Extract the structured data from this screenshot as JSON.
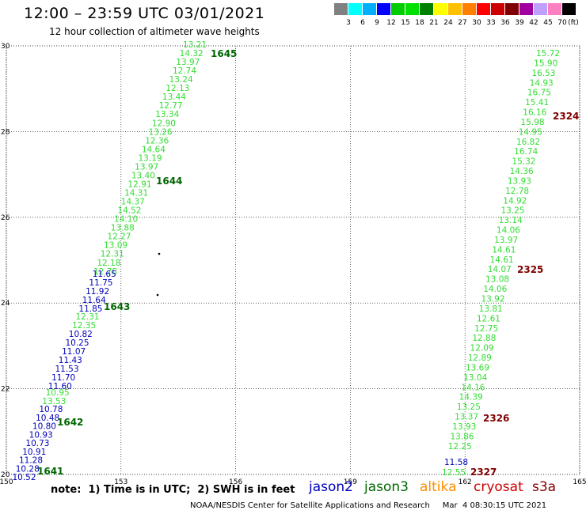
{
  "header": {
    "title": "12:00 – 23:59 UTC 03/01/2021",
    "subtitle": "12 hour collection of altimeter wave heights"
  },
  "color_scale": {
    "unit": "(ft)",
    "swatches": [
      "#808080",
      "#00ffff",
      "#00b0ff",
      "#0000ff",
      "#00cc00",
      "#00e000",
      "#008000",
      "#ffff00",
      "#ffc000",
      "#ff8000",
      "#ff0000",
      "#cc0000",
      "#800000",
      "#a000a0",
      "#c0a0ff",
      "#ff80c0",
      "#000000"
    ],
    "labels": [
      "3",
      "6",
      "9",
      "12",
      "15",
      "18",
      "21",
      "24",
      "27",
      "30",
      "33",
      "36",
      "39",
      "42",
      "45",
      "70"
    ]
  },
  "colors": {
    "jason2": "#0000bb",
    "jason3": "#006600",
    "jason3_values": "#33dd33",
    "altika": "#ff8c00",
    "cryosat": "#cc0000",
    "s3a": "#800000"
  },
  "map": {
    "lon_ticks": [
      "150",
      "153",
      "156",
      "159",
      "162",
      "165"
    ],
    "lat_ticks": [
      "20",
      "22",
      "24",
      "26",
      "28",
      "30"
    ],
    "lon_range": [
      150,
      165
    ],
    "lat_range": [
      20,
      30
    ]
  },
  "tracks": {
    "left_green_top": [
      "13.21",
      "14.32",
      "13.97",
      "12.74",
      "13.24",
      "12.13",
      "13.44",
      "12.77",
      "13.34",
      "12.90",
      "13.26",
      "12.36",
      "14.64",
      "13.19",
      "13.97",
      "13.40",
      "12.91",
      "14.31",
      "14.37",
      "14.52",
      "14.10",
      "13.88",
      "12.27",
      "13.09",
      "12.31",
      "12.18",
      "12.78"
    ],
    "left_blue_mid": [
      "11.65",
      "11.75",
      "11.92",
      "11.64",
      "11.85"
    ],
    "left_green_mid": [
      "12.31",
      "12.35"
    ],
    "left_blue_low": [
      "10.82",
      "10.25",
      "11.07",
      "11.43",
      "11.53",
      "11.70",
      "11.60"
    ],
    "left_green_low": [
      "10.95",
      "13.53"
    ],
    "left_blue_bottom": [
      "10.78",
      "10.48",
      "10.80",
      "10.93",
      "10.73",
      "10.91",
      "11.28",
      "10.28",
      "10.52"
    ],
    "right_green": [
      "15.72",
      "15.90",
      "16.53",
      "14.93",
      "16.75",
      "15.41",
      "16.16",
      "15.98",
      "14.95",
      "16.82",
      "16.74",
      "15.32",
      "14.36",
      "13.93",
      "12.78",
      "14.92",
      "13.25",
      "13.14",
      "14.06",
      "13.97",
      "14.61",
      "14.61",
      "14.07",
      "13.08",
      "14.06",
      "13.92",
      "13.81",
      "12.61",
      "12.75",
      "12.88",
      "12.09",
      "12.89",
      "13.69",
      "13.04",
      "14.16",
      "14.39",
      "13.25",
      "13.37",
      "13.93",
      "13.86",
      "12.25"
    ],
    "right_blue": [
      "11.58"
    ],
    "right_green_bottom": [
      "12.55"
    ],
    "time_labels": {
      "t1645": "1645",
      "t1644": "1644",
      "t1643": "1643",
      "t1642": "1642",
      "t1641": "1641",
      "t2324": "2324",
      "t2325": "2325",
      "t2326": "2326",
      "t2327": "2327"
    }
  },
  "note": "note:  1) Time is in UTC;  2) SWH is in feet",
  "legend": {
    "jason2": "jason2",
    "jason3": "jason3",
    "altika": "altika",
    "cryosat": "cryosat",
    "s3a": "s3a"
  },
  "footer": "NOAA/NESDIS Center for Satellite Applications and Research     Mar  4 08:30:15 UTC 2021"
}
